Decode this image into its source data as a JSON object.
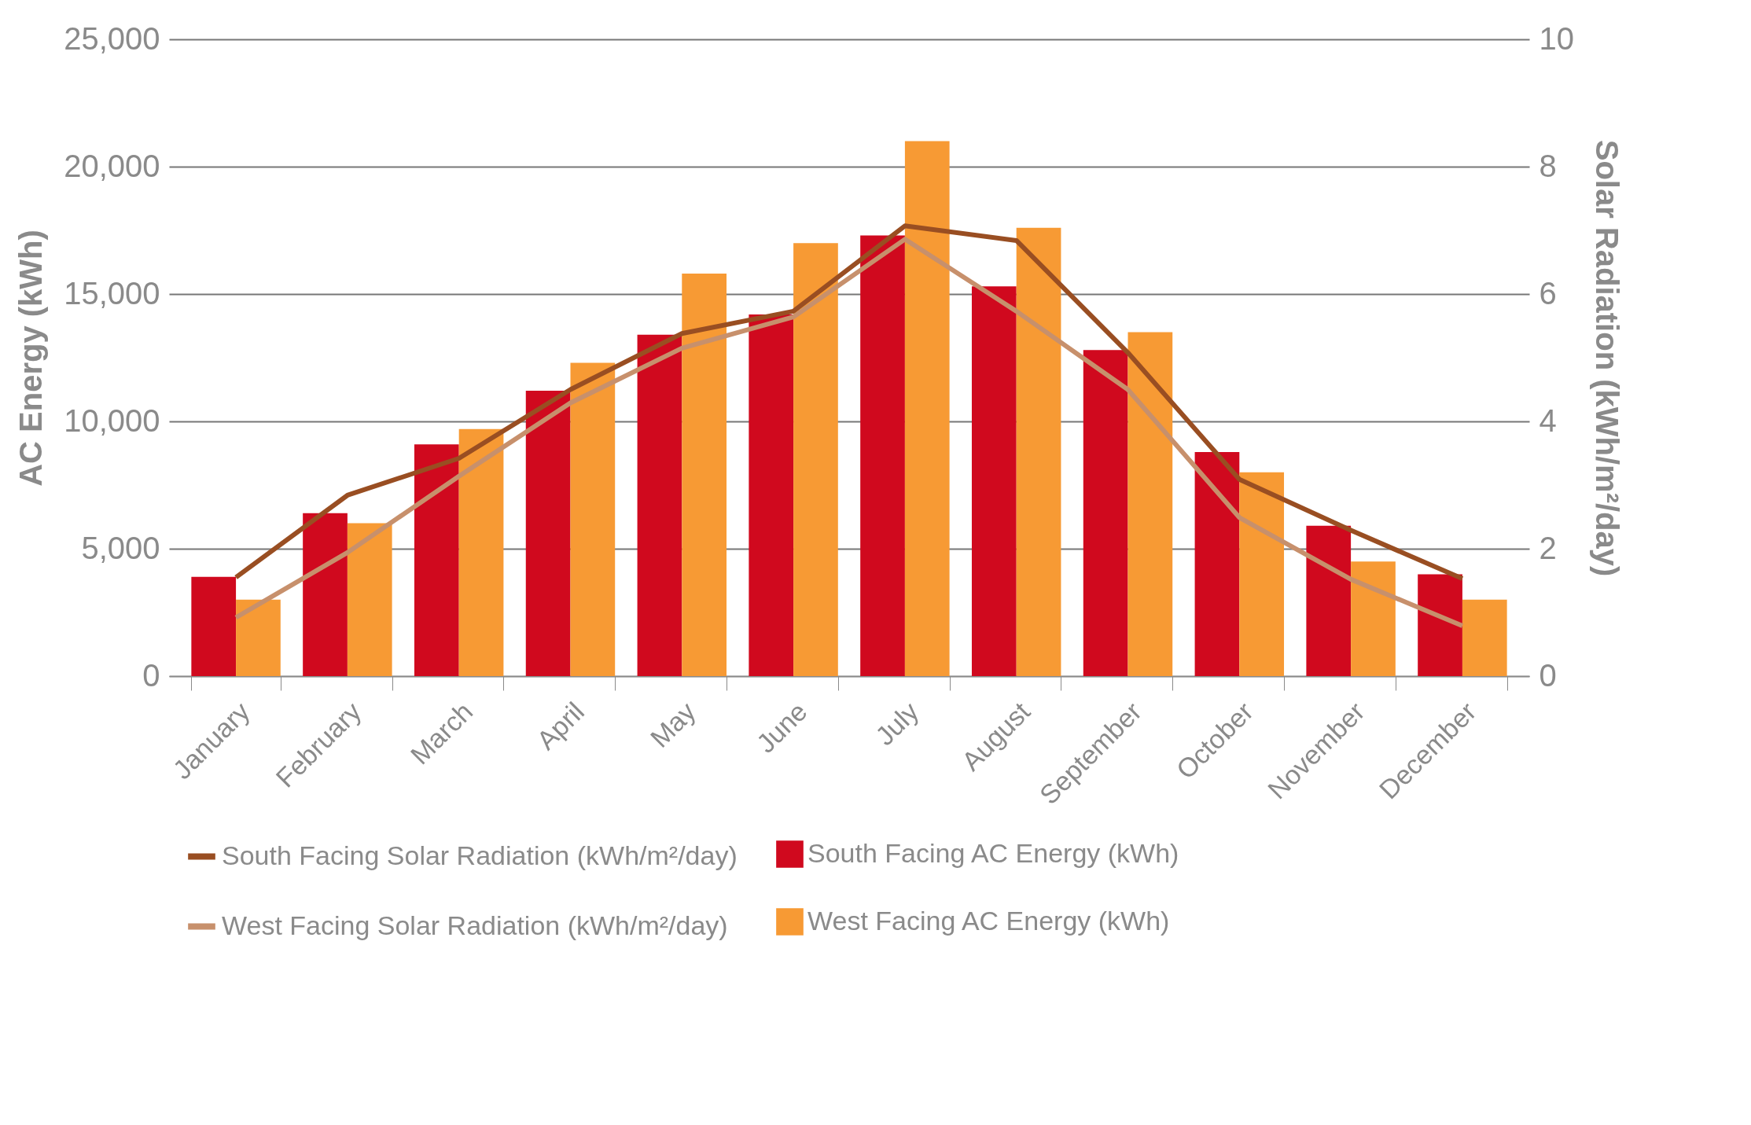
{
  "chart_data": {
    "type": "bar",
    "ylabel": "AC Energy (kWh)",
    "y2label": "Solar Radiation (kWh/m²/day)",
    "categories": [
      "January",
      "February",
      "March",
      "April",
      "May",
      "June",
      "July",
      "August",
      "September",
      "October",
      "November",
      "December"
    ],
    "series": [
      {
        "name": "South Facing AC Energy (kWh)",
        "color": "#d0091e",
        "values": [
          3900,
          6400,
          9100,
          11200,
          13400,
          14200,
          17300,
          15300,
          12800,
          8800,
          5900,
          4000
        ]
      },
      {
        "name": "West Facing AC Energy (kWh)",
        "color": "#f79a34",
        "values": [
          3000,
          6000,
          9700,
          12300,
          15800,
          17000,
          21000,
          17600,
          13500,
          8000,
          4500,
          3000
        ]
      },
      {
        "name": "South Facing Solar Radiation (kWh/m²/day)",
        "type": "line",
        "axis": "y2",
        "color": "#994e22",
        "values": [
          1.55,
          2.84,
          3.42,
          4.5,
          5.38,
          5.73,
          7.07,
          6.84,
          5.08,
          3.09,
          2.29,
          1.53
        ]
      },
      {
        "name": "West Facing Solar Radiation (kWh/m²/day)",
        "type": "line",
        "axis": "y2",
        "color": "#c7906c",
        "values": [
          0.92,
          1.94,
          3.14,
          4.29,
          5.15,
          5.64,
          6.86,
          5.73,
          4.5,
          2.49,
          1.52,
          0.79
        ]
      }
    ],
    "ylim": [
      0,
      25000
    ],
    "yticks": [
      {
        "value": 0,
        "label": "0"
      },
      {
        "value": 5000,
        "label": "5,000"
      },
      {
        "value": 10000,
        "label": "10,000"
      },
      {
        "value": 15000,
        "label": "15,000"
      },
      {
        "value": 20000,
        "label": "20,000"
      },
      {
        "value": 25000,
        "label": "25,000"
      }
    ],
    "y2lim": [
      0,
      10
    ],
    "y2ticks": [
      0,
      2,
      4,
      6,
      8,
      10
    ],
    "grid": "y",
    "legend": "bottom"
  }
}
